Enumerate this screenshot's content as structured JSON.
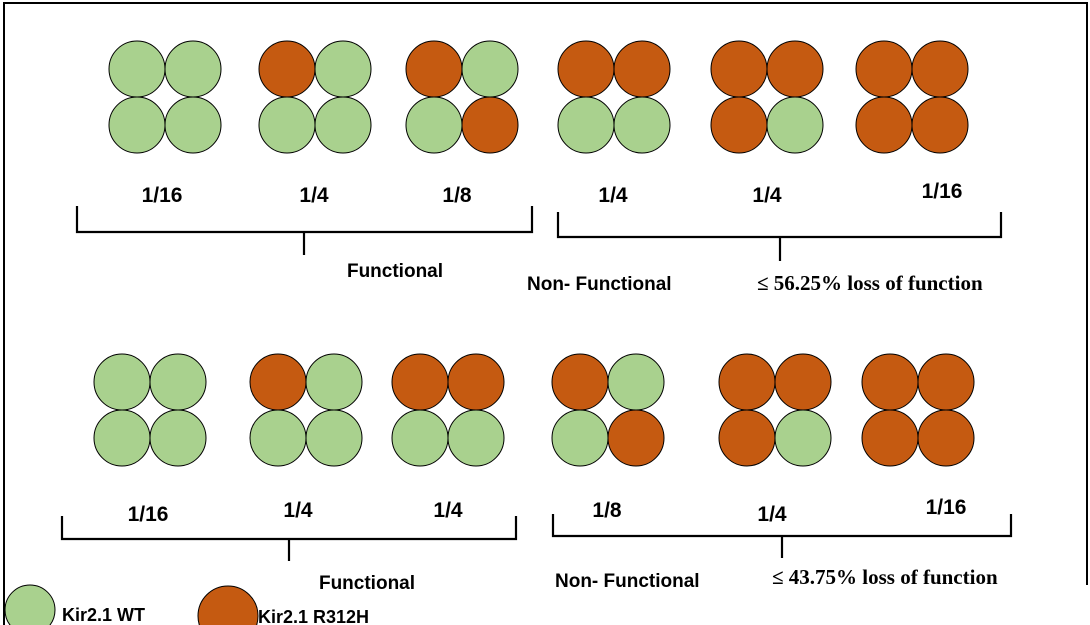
{
  "colors": {
    "wt": "#a9d18e",
    "mutant": "#c55a11",
    "outline": "#000000",
    "frame": "#000000"
  },
  "top_row": {
    "tetramers": [
      {
        "cells": [
          "wt",
          "wt",
          "wt",
          "wt"
        ],
        "fraction": "1/16"
      },
      {
        "cells": [
          "mutant",
          "wt",
          "wt",
          "wt"
        ],
        "fraction": "1/4"
      },
      {
        "cells": [
          "mutant",
          "wt",
          "wt",
          "mutant"
        ],
        "fraction": "1/8"
      },
      {
        "cells": [
          "mutant",
          "mutant",
          "wt",
          "wt"
        ],
        "fraction": "1/4"
      },
      {
        "cells": [
          "mutant",
          "mutant",
          "mutant",
          "wt"
        ],
        "fraction": "1/4"
      },
      {
        "cells": [
          "mutant",
          "mutant",
          "mutant",
          "mutant"
        ],
        "fraction": "1/16"
      }
    ],
    "functional_label": "Functional",
    "nonfunctional_label": "Non- Functional",
    "loss_label": "≤ 56.25% loss of function"
  },
  "bottom_row": {
    "tetramers": [
      {
        "cells": [
          "wt",
          "wt",
          "wt",
          "wt"
        ],
        "fraction": "1/16"
      },
      {
        "cells": [
          "mutant",
          "wt",
          "wt",
          "wt"
        ],
        "fraction": "1/4"
      },
      {
        "cells": [
          "mutant",
          "mutant",
          "wt",
          "wt"
        ],
        "fraction": "1/4"
      },
      {
        "cells": [
          "mutant",
          "wt",
          "wt",
          "mutant"
        ],
        "fraction": "1/8"
      },
      {
        "cells": [
          "mutant",
          "mutant",
          "mutant",
          "wt"
        ],
        "fraction": "1/4"
      },
      {
        "cells": [
          "mutant",
          "mutant",
          "mutant",
          "mutant"
        ],
        "fraction": "1/16"
      }
    ],
    "functional_label": "Functional",
    "nonfunctional_label": "Non- Functional",
    "loss_label": "≤ 43.75% loss of function"
  },
  "legend": {
    "items": [
      {
        "color": "wt",
        "label": "Kir2.1 WT"
      },
      {
        "color": "mutant",
        "label": "Kir2.1 R312H"
      }
    ]
  }
}
